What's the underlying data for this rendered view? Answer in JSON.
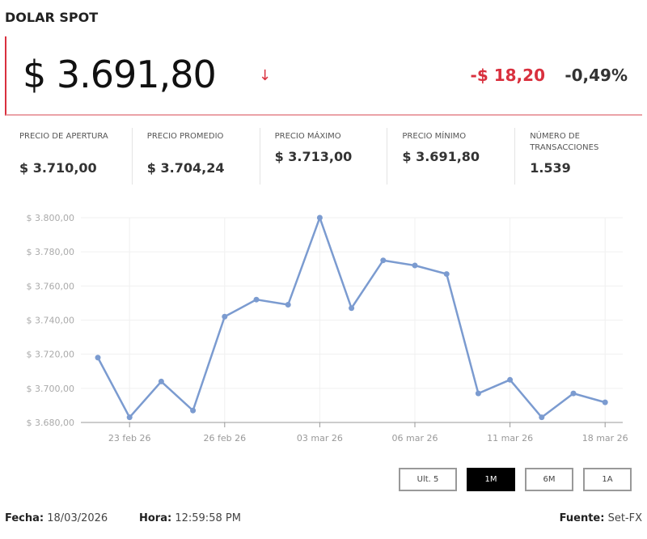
{
  "title": "DOLAR SPOT",
  "price": "$ 3.691,80",
  "direction_icon": "arrow-down-icon",
  "change": "-$ 18,20",
  "change_pct": "-0,49%",
  "colors": {
    "negative": "#d9303e",
    "line": "#7b9bd0",
    "active_button": "#000000"
  },
  "stats": [
    {
      "label": "Precio de apertura",
      "value": "$ 3.710,00"
    },
    {
      "label": "Precio promedio",
      "value": "$ 3.704,24"
    },
    {
      "label": "Precio máximo",
      "value": "$ 3.713,00"
    },
    {
      "label": "Precio mínimo",
      "value": "$ 3.691,80"
    },
    {
      "label": "Número de transacciones",
      "value": "1.539"
    }
  ],
  "chart_data": {
    "type": "line",
    "values": [
      3718,
      3683,
      3704,
      3687,
      3742,
      3752,
      3749,
      3800,
      3747,
      3775,
      3772,
      3767,
      3697,
      3705,
      3683,
      3697,
      3691.8
    ],
    "x_ticks": [
      {
        "index": 1,
        "label": "23 feb 26"
      },
      {
        "index": 4,
        "label": "26 feb 26"
      },
      {
        "index": 7,
        "label": "03 mar 26"
      },
      {
        "index": 10,
        "label": "06 mar 26"
      },
      {
        "index": 13,
        "label": "11 mar 26"
      },
      {
        "index": 16,
        "label": "18 mar 26"
      }
    ],
    "y_ticks": [
      "$ 3.680,00",
      "$ 3.700,00",
      "$ 3.720,00",
      "$ 3.740,00",
      "$ 3.760,00",
      "$ 3.780,00",
      "$ 3.800,00"
    ],
    "ylim": [
      3680,
      3800
    ],
    "grid": true,
    "markers": true
  },
  "ranges": [
    {
      "label": "Ult. 5",
      "active": false
    },
    {
      "label": "1M",
      "active": true
    },
    {
      "label": "6M",
      "active": false
    },
    {
      "label": "1A",
      "active": false
    }
  ],
  "footer": {
    "fecha_label": "Fecha:",
    "fecha": "18/03/2026",
    "hora_label": "Hora:",
    "hora": "12:59:58 PM",
    "fuente_label": "Fuente:",
    "fuente": "Set-FX"
  }
}
